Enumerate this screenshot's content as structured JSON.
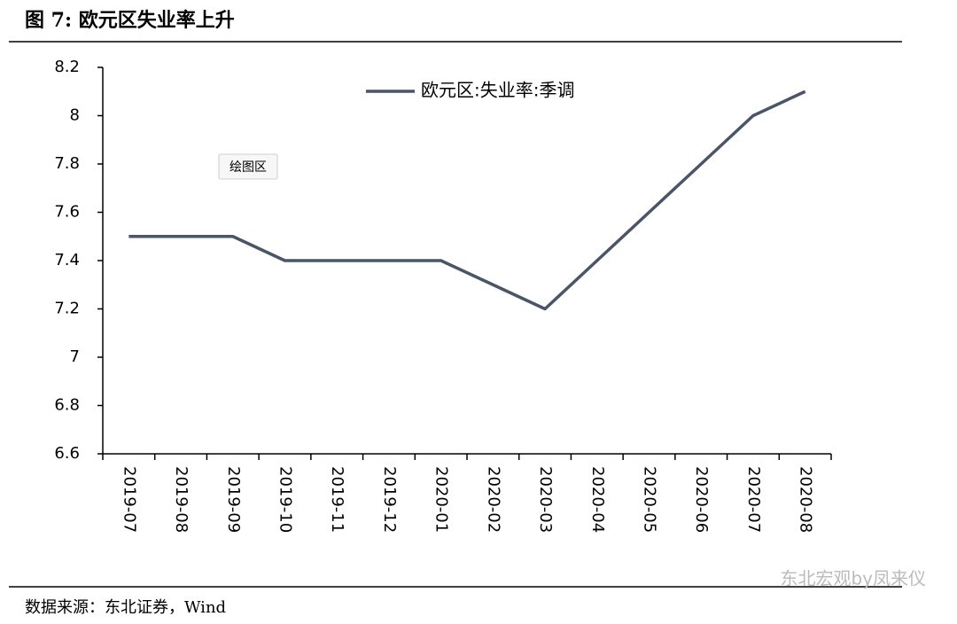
{
  "chart_data": {
    "type": "line",
    "title": "图 7: 欧元区失业率上升",
    "categories": [
      "2019-07",
      "2019-08",
      "2019-09",
      "2019-10",
      "2019-11",
      "2019-12",
      "2020-01",
      "2020-02",
      "2020-03",
      "2020-04",
      "2020-05",
      "2020-06",
      "2020-07",
      "2020-08"
    ],
    "series": [
      {
        "name": "欧元区:失业率:季调",
        "color": "#4a5568",
        "values": [
          7.5,
          7.5,
          7.5,
          7.4,
          7.4,
          7.4,
          7.4,
          7.3,
          7.2,
          7.4,
          7.6,
          7.8,
          8,
          8.1
        ]
      }
    ],
    "ylim": [
      6.6,
      8.2
    ],
    "yticks": [
      6.6,
      6.8,
      7,
      7.2,
      7.4,
      7.6,
      7.8,
      8,
      8.2
    ],
    "grid": false,
    "legend": "top"
  },
  "source": "数据来源：东北证券，Wind",
  "watermark": "东北宏观by凤来仪",
  "tooltip": "绘图区"
}
